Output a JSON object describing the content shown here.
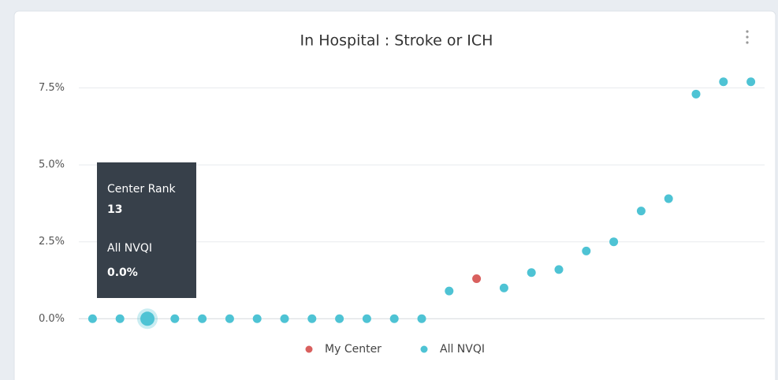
{
  "chart_data": {
    "type": "scatter",
    "title": "In Hospital : Stroke or ICH",
    "x": [
      1,
      2,
      3,
      4,
      5,
      6,
      7,
      8,
      9,
      10,
      11,
      12,
      13,
      14,
      15,
      16,
      17,
      18,
      19,
      20,
      21,
      22,
      23,
      24,
      25
    ],
    "series": [
      {
        "name": "My Center",
        "color": "#d9605e",
        "values": [
          null,
          null,
          null,
          null,
          null,
          null,
          null,
          null,
          null,
          null,
          null,
          null,
          null,
          null,
          1.3,
          null,
          null,
          null,
          null,
          null,
          null,
          null,
          null,
          null,
          null
        ]
      },
      {
        "name": "All NVQI",
        "color": "#4ec3d4",
        "values": [
          0,
          0,
          0,
          0,
          0,
          0,
          0,
          0,
          0,
          0,
          0,
          0,
          0,
          0.9,
          null,
          1.0,
          1.5,
          1.6,
          2.2,
          2.5,
          3.5,
          3.9,
          7.3,
          7.7,
          7.7
        ]
      }
    ],
    "xlim": [
      0.5,
      25.5
    ],
    "ylim": [
      -0.3,
      8.0
    ],
    "yticks": [
      {
        "value": 0,
        "label": "0.0%"
      },
      {
        "value": 2.5,
        "label": "2.5%"
      },
      {
        "value": 5,
        "label": "5.0%"
      },
      {
        "value": 7.5,
        "label": "7.5%"
      }
    ],
    "grid": true,
    "legend": "bottom",
    "tooltip": {
      "title": "Center Rank",
      "rank": 13,
      "series": "All NVQI",
      "value_label": "0.0%",
      "highlight": 2
    }
  }
}
